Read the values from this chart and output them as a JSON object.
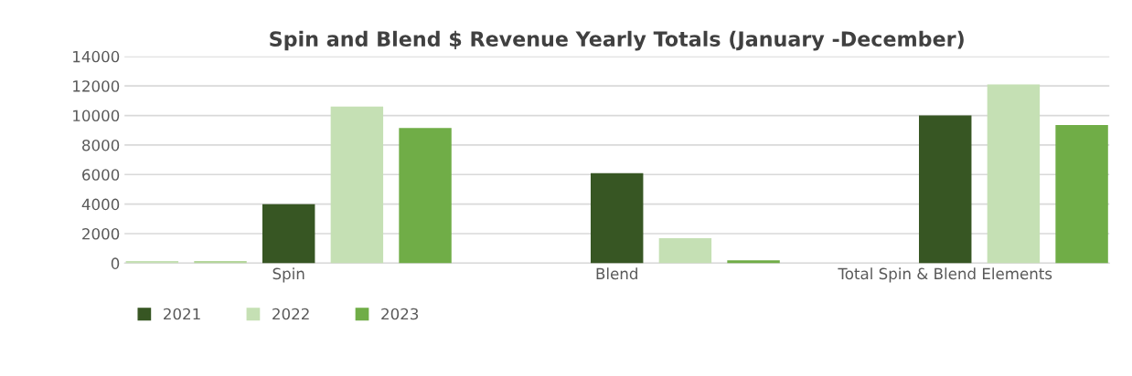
{
  "chart_data": {
    "type": "bar",
    "title": "Spin and Blend $ Revenue Yearly Totals (January -December)",
    "categories": [
      "Spin",
      "Blend",
      "Total Spin & Blend Elements"
    ],
    "series": [
      {
        "color": "#c5e0b4",
        "values": [
          150,
          null,
          null
        ]
      },
      {
        "color": "#b5d69c",
        "values": [
          150,
          null,
          null
        ]
      },
      {
        "name": "2021",
        "color": "#375623",
        "values": [
          4000,
          6100,
          10000
        ]
      },
      {
        "name": "2022",
        "color": "#c5e0b4",
        "values": [
          10600,
          1700,
          12100
        ]
      },
      {
        "name": "2023",
        "color": "#70ad47",
        "values": [
          9150,
          200,
          9350
        ]
      }
    ],
    "ylim": [
      0,
      14000
    ],
    "yticks": [
      0,
      2000,
      4000,
      6000,
      8000,
      10000,
      12000,
      14000
    ],
    "grid": "y",
    "legend": "bottom left"
  }
}
